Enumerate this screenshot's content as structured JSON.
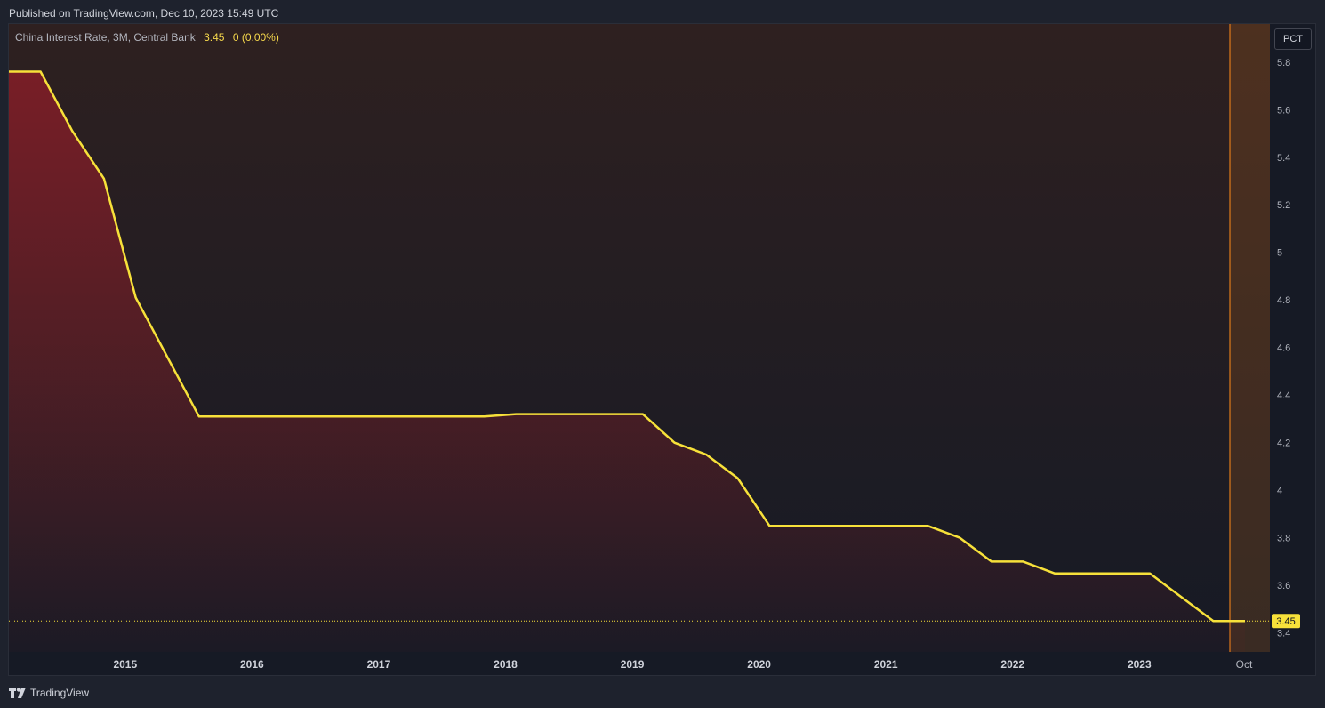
{
  "header": {
    "published": "Published on TradingView.com, Dec 10, 2023 15:49 UTC"
  },
  "legend": {
    "symbol": "China Interest Rate, 3M, Central Bank",
    "value": "3.45",
    "change": "0 (0.00%)"
  },
  "scale_button": "PCT",
  "footer": {
    "brand": "TradingView",
    "logo_icon": "tradingview-logo-icon"
  },
  "colors": {
    "line": "#f7e13a",
    "fill_top": "#7c1e27",
    "highlight": "#e07b1a",
    "last_label_bg": "#f7e13a"
  },
  "chart_data": {
    "type": "area",
    "title": "China Interest Rate, 3M, Central Bank",
    "x": [
      "2014-03",
      "2014-06",
      "2014-09",
      "2014-12",
      "2015-03",
      "2015-06",
      "2015-09",
      "2015-12",
      "2016-03",
      "2016-06",
      "2016-09",
      "2016-12",
      "2017-03",
      "2017-06",
      "2017-09",
      "2017-12",
      "2018-03",
      "2018-06",
      "2018-09",
      "2018-12",
      "2019-03",
      "2019-06",
      "2019-09",
      "2019-12",
      "2020-03",
      "2020-06",
      "2020-09",
      "2020-12",
      "2021-03",
      "2021-06",
      "2021-09",
      "2021-12",
      "2022-03",
      "2022-06",
      "2022-09",
      "2022-12",
      "2023-03",
      "2023-06",
      "2023-09",
      "2023-12"
    ],
    "series": [
      {
        "values": [
          5.76,
          5.76,
          5.51,
          5.31,
          4.81,
          4.56,
          4.31,
          4.31,
          4.31,
          4.31,
          4.31,
          4.31,
          4.31,
          4.31,
          4.31,
          4.31,
          4.32,
          4.32,
          4.32,
          4.32,
          4.32,
          4.2,
          4.15,
          4.05,
          3.85,
          3.85,
          3.85,
          3.85,
          3.85,
          3.85,
          3.8,
          3.7,
          3.7,
          3.65,
          3.65,
          3.65,
          3.65,
          3.55,
          3.45,
          3.45
        ]
      }
    ],
    "x_ticks": [
      "2015",
      "2016",
      "2017",
      "2018",
      "2019",
      "2020",
      "2021",
      "2022",
      "2023",
      "Oct"
    ],
    "y_ticks": [
      "5.8",
      "5.6",
      "5.4",
      "5.2",
      "5",
      "4.8",
      "4.6",
      "4.4",
      "4.2",
      "4",
      "3.8",
      "3.6",
      "3.4"
    ],
    "ylim": [
      3.32,
      5.96
    ],
    "last_value_label": "3.45",
    "grid": false,
    "highlighted_period": "Oct"
  }
}
